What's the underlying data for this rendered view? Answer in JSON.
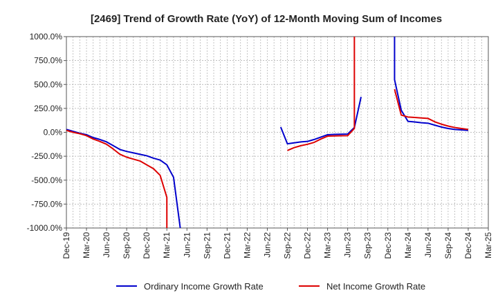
{
  "chart_data": {
    "type": "line",
    "title": "[2469]  Trend of Growth Rate (YoY) of 12-Month Moving Sum of Incomes",
    "xlabel": "",
    "ylabel": "",
    "ylim": [
      -1000,
      1000
    ],
    "y_ticks": [
      "1000.0%",
      "750.0%",
      "500.0%",
      "250.0%",
      "0.0%",
      "-250.0%",
      "-500.0%",
      "-750.0%",
      "-1000.0%"
    ],
    "y_tick_values": [
      1000,
      750,
      500,
      250,
      0,
      -250,
      -500,
      -750,
      -1000
    ],
    "x_ticks": [
      "Dec-19",
      "Mar-20",
      "Jun-20",
      "Sep-20",
      "Dec-20",
      "Mar-21",
      "Jun-21",
      "Sep-21",
      "Dec-21",
      "Mar-22",
      "Jun-22",
      "Sep-22",
      "Dec-22",
      "Mar-23",
      "Jun-23",
      "Sep-23",
      "Dec-23",
      "Mar-24",
      "Jun-24",
      "Sep-24",
      "Dec-24",
      "Mar-25"
    ],
    "grid": true,
    "legend_position": "bottom",
    "series": [
      {
        "name": "Ordinary Income Growth Rate",
        "color": "#0000cc",
        "points": [
          [
            "Dec-19",
            30
          ],
          [
            "Jan-20",
            10
          ],
          [
            "Feb-20",
            -10
          ],
          [
            "Mar-20",
            -25
          ],
          [
            "Apr-20",
            -55
          ],
          [
            "May-20",
            -75
          ],
          [
            "Jun-20",
            -100
          ],
          [
            "Jul-20",
            -140
          ],
          [
            "Aug-20",
            -180
          ],
          [
            "Sep-20",
            -200
          ],
          [
            "Oct-20",
            -215
          ],
          [
            "Nov-20",
            -230
          ],
          [
            "Dec-20",
            -245
          ],
          [
            "Jan-21",
            -270
          ],
          [
            "Feb-21",
            -290
          ],
          [
            "Mar-21",
            -340
          ],
          [
            "Apr-21",
            -470
          ],
          [
            "May-21",
            -1000
          ],
          null,
          [
            "Aug-22",
            55
          ],
          [
            "Sep-22",
            -120
          ],
          [
            "Oct-22",
            -110
          ],
          [
            "Nov-22",
            -100
          ],
          [
            "Dec-22",
            -95
          ],
          [
            "Jan-23",
            -75
          ],
          [
            "Feb-23",
            -50
          ],
          [
            "Mar-23",
            -25
          ],
          [
            "Apr-23",
            -22
          ],
          [
            "May-23",
            -20
          ],
          [
            "Jun-23",
            -18
          ],
          [
            "Jul-23",
            50
          ],
          [
            "Aug-23",
            370
          ],
          null,
          [
            "Jan-24",
            1000
          ],
          [
            "Jan-24",
            550
          ],
          [
            "Feb-24",
            230
          ],
          [
            "Mar-24",
            115
          ],
          [
            "Apr-24",
            108
          ],
          [
            "May-24",
            100
          ],
          [
            "Jun-24",
            95
          ],
          [
            "Jul-24",
            75
          ],
          [
            "Aug-24",
            55
          ],
          [
            "Sep-24",
            40
          ],
          [
            "Oct-24",
            30
          ],
          [
            "Nov-24",
            25
          ],
          [
            "Dec-24",
            20
          ]
        ]
      },
      {
        "name": "Net Income Growth Rate",
        "color": "#dd0000",
        "points": [
          [
            "Dec-19",
            20
          ],
          [
            "Jan-20",
            0
          ],
          [
            "Feb-20",
            -15
          ],
          [
            "Mar-20",
            -35
          ],
          [
            "Apr-20",
            -70
          ],
          [
            "May-20",
            -95
          ],
          [
            "Jun-20",
            -125
          ],
          [
            "Jul-20",
            -175
          ],
          [
            "Aug-20",
            -230
          ],
          [
            "Sep-20",
            -260
          ],
          [
            "Oct-20",
            -280
          ],
          [
            "Nov-20",
            -300
          ],
          [
            "Dec-20",
            -340
          ],
          [
            "Jan-21",
            -380
          ],
          [
            "Feb-21",
            -450
          ],
          [
            "Mar-21",
            -680
          ],
          [
            "Mar-21",
            -1000
          ],
          null,
          [
            "Sep-22",
            -190
          ],
          [
            "Oct-22",
            -160
          ],
          [
            "Nov-22",
            -140
          ],
          [
            "Dec-22",
            -125
          ],
          [
            "Jan-23",
            -105
          ],
          [
            "Feb-23",
            -70
          ],
          [
            "Mar-23",
            -40
          ],
          [
            "Apr-23",
            -38
          ],
          [
            "May-23",
            -36
          ],
          [
            "Jun-23",
            -35
          ],
          [
            "Jul-23",
            40
          ],
          [
            "Jul-23",
            1000
          ],
          null,
          [
            "Jan-24",
            450
          ],
          [
            "Feb-24",
            180
          ],
          [
            "Mar-24",
            160
          ],
          [
            "Apr-24",
            155
          ],
          [
            "May-24",
            150
          ],
          [
            "Jun-24",
            145
          ],
          [
            "Jul-24",
            110
          ],
          [
            "Aug-24",
            85
          ],
          [
            "Sep-24",
            65
          ],
          [
            "Oct-24",
            50
          ],
          [
            "Nov-24",
            40
          ],
          [
            "Dec-24",
            30
          ]
        ]
      }
    ]
  }
}
